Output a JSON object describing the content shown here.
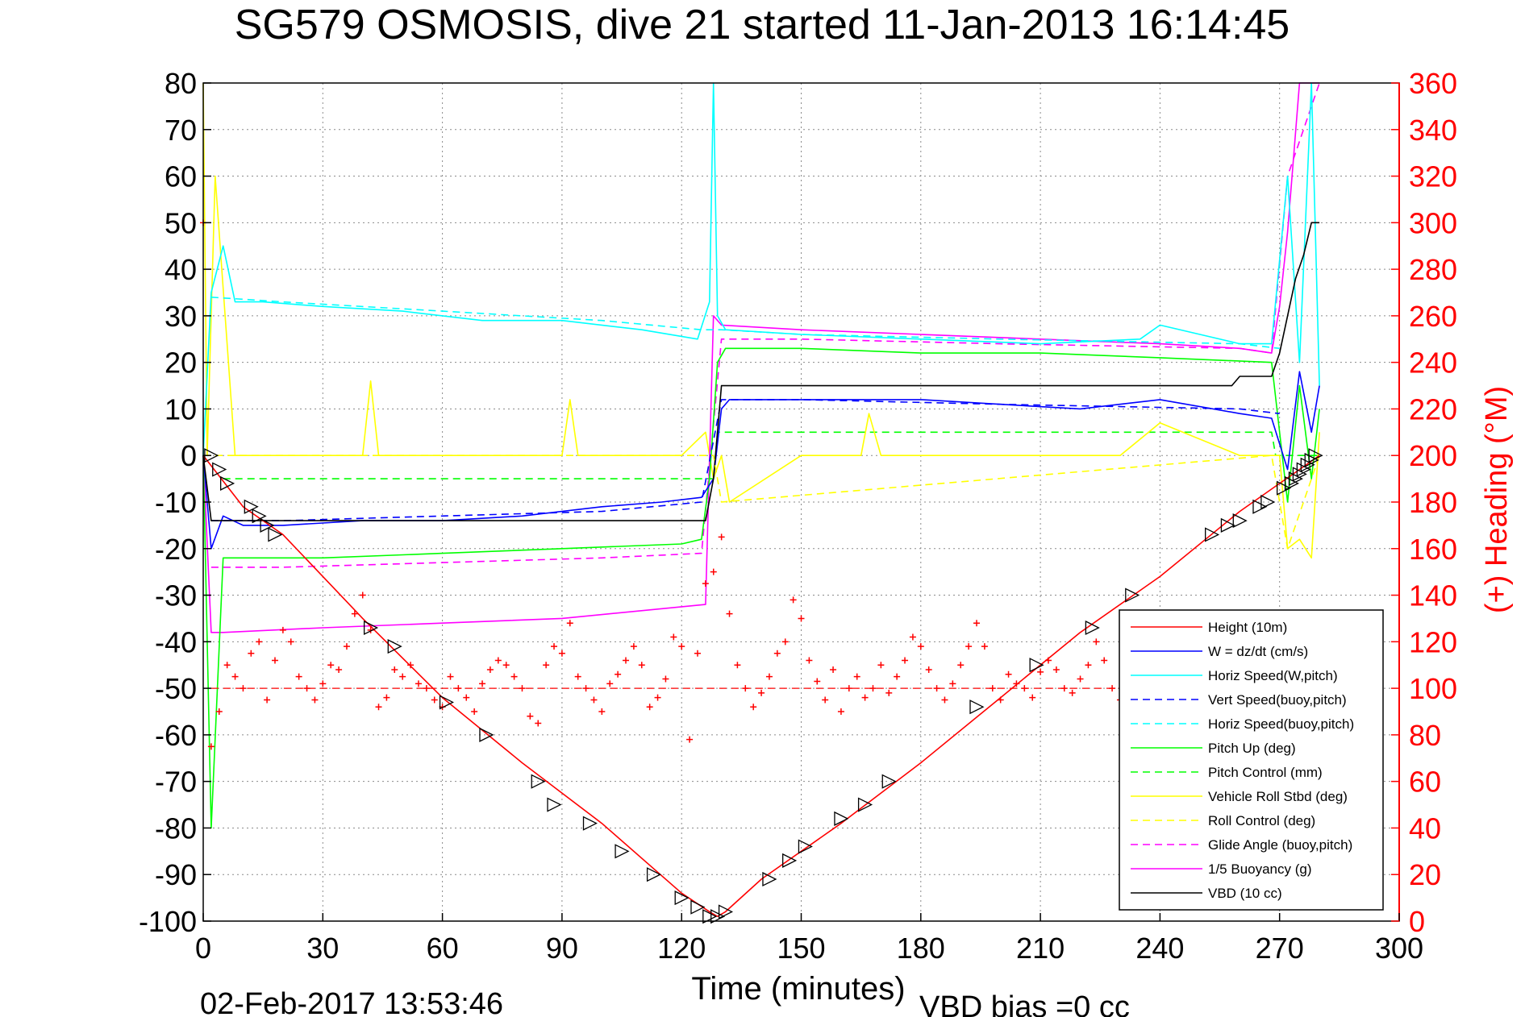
{
  "chart_data": {
    "type": "line",
    "title": "SG579 OSMOSIS, dive 21 started 11-Jan-2013 16:14:45",
    "xlabel": "Time (minutes)",
    "ylabel_right": "(+) Heading (°M)",
    "footer_timestamp": "02-Feb-2017 13:53:46",
    "footer_note": "VBD bias =0 cc",
    "xlim": [
      0,
      300
    ],
    "ylim": [
      -100,
      80
    ],
    "ylim_right": [
      0,
      360
    ],
    "x_ticks": [
      0,
      30,
      60,
      90,
      120,
      150,
      180,
      210,
      240,
      270,
      300
    ],
    "y_ticks": [
      -100,
      -90,
      -80,
      -70,
      -60,
      -50,
      -40,
      -30,
      -20,
      -10,
      0,
      10,
      20,
      30,
      40,
      50,
      60,
      70,
      80
    ],
    "y_ticks_right": [
      0,
      20,
      40,
      60,
      80,
      100,
      120,
      140,
      160,
      180,
      200,
      220,
      240,
      260,
      280,
      300,
      320,
      340,
      360
    ],
    "grid": true,
    "legend_position": "bottom-right",
    "colors": {
      "axis": "#000000",
      "right_axis": "#ff0000",
      "grid": "#8a8a8a",
      "background": "#ffffff"
    },
    "series": [
      {
        "name": "Height (10m)",
        "color": "#ff0000",
        "style": "solid",
        "x": [
          0,
          10,
          20,
          40,
          60,
          80,
          100,
          120,
          127,
          129,
          131,
          140,
          160,
          180,
          200,
          220,
          240,
          260,
          270,
          275,
          280
        ],
        "y": [
          0,
          -11,
          -17,
          -35,
          -52,
          -66,
          -79,
          -94,
          -98,
          -99,
          -98,
          -91,
          -79,
          -66,
          -52,
          -38,
          -26,
          -12,
          -6,
          -3,
          0
        ]
      },
      {
        "name": "W = dz/dt (cm/s)",
        "color": "#0000ff",
        "style": "solid",
        "x": [
          0,
          2,
          5,
          10,
          20,
          40,
          60,
          80,
          100,
          115,
          125,
          128,
          130,
          132,
          150,
          180,
          200,
          220,
          240,
          260,
          268,
          272,
          275,
          278,
          280
        ],
        "y": [
          0,
          -20,
          -13,
          -15,
          -15,
          -14,
          -14,
          -13,
          -11,
          -10,
          -9,
          -5,
          10,
          12,
          12,
          12,
          11,
          10,
          12,
          9,
          8,
          -3,
          18,
          5,
          15
        ]
      },
      {
        "name": "Horiz Speed(W,pitch)",
        "color": "#00ffff",
        "style": "solid",
        "x": [
          0,
          2,
          5,
          8,
          15,
          30,
          50,
          70,
          90,
          110,
          124,
          127,
          128,
          129,
          131,
          150,
          180,
          210,
          235,
          240,
          260,
          268,
          272,
          275,
          278,
          280
        ],
        "y": [
          0,
          35,
          45,
          33,
          33,
          32,
          31,
          29,
          29,
          27,
          25,
          33,
          80,
          30,
          27,
          26,
          25,
          24,
          25,
          28,
          24,
          24,
          60,
          20,
          80,
          15
        ]
      },
      {
        "name": "Vert Speed(buoy,pitch)",
        "color": "#0000ff",
        "style": "dashed",
        "x": [
          2,
          20,
          60,
          100,
          125,
          130,
          150,
          200,
          260,
          270
        ],
        "y": [
          -14,
          -14,
          -13,
          -12,
          -10,
          12,
          12,
          11,
          10,
          9
        ]
      },
      {
        "name": "Horiz Speed(buoy,pitch)",
        "color": "#00ffff",
        "style": "dashed",
        "x": [
          2,
          20,
          60,
          100,
          125,
          130,
          150,
          200,
          260,
          270
        ],
        "y": [
          34,
          33,
          31,
          29,
          27,
          27,
          26,
          25,
          24,
          23
        ]
      },
      {
        "name": "Pitch Up (deg)",
        "color": "#00ff00",
        "style": "solid",
        "x": [
          0,
          2,
          5,
          10,
          30,
          60,
          90,
          120,
          125,
          127,
          129,
          131,
          150,
          180,
          210,
          240,
          268,
          272,
          275,
          278,
          280
        ],
        "y": [
          0,
          -80,
          -22,
          -22,
          -22,
          -21,
          -20,
          -19,
          -18,
          -5,
          20,
          23,
          23,
          22,
          22,
          21,
          20,
          -10,
          15,
          -5,
          10
        ]
      },
      {
        "name": "Pitch Control (mm)",
        "color": "#00ff00",
        "style": "dashed",
        "x": [
          5,
          128,
          129,
          268,
          269,
          280
        ],
        "y": [
          -5,
          -5,
          5,
          5,
          0,
          0
        ]
      },
      {
        "name": "Vehicle Roll Stbd (deg)",
        "color": "#ffff00",
        "style": "solid",
        "x": [
          0,
          1,
          3,
          8,
          20,
          40,
          42,
          44,
          60,
          90,
          92,
          94,
          120,
          126,
          128,
          130,
          132,
          150,
          165,
          167,
          170,
          200,
          230,
          240,
          260,
          270,
          272,
          275,
          278,
          280
        ],
        "y": [
          80,
          0,
          60,
          0,
          0,
          0,
          16,
          0,
          0,
          0,
          12,
          0,
          0,
          5,
          -5,
          0,
          -10,
          0,
          0,
          9,
          0,
          0,
          0,
          7,
          0,
          0,
          -20,
          -18,
          -22,
          5
        ]
      },
      {
        "name": "Roll Control (deg)",
        "color": "#ffff00",
        "style": "dashed",
        "x": [
          0,
          5,
          128,
          130,
          268,
          272,
          280
        ],
        "y": [
          0,
          0,
          0,
          -10,
          0,
          -20,
          0
        ]
      },
      {
        "name": "Glide Angle (buoy,pitch)",
        "color": "#ff00ff",
        "style": "dashed",
        "x": [
          2,
          20,
          60,
          100,
          125,
          130,
          150,
          200,
          260,
          268,
          272,
          280
        ],
        "y": [
          -24,
          -24,
          -23,
          -22,
          -21,
          25,
          25,
          24,
          23,
          22,
          60,
          80
        ]
      },
      {
        "name": "1/5 Buoyancy (g)",
        "color": "#ff00ff",
        "style": "solid",
        "x": [
          0,
          2,
          5,
          30,
          60,
          90,
          126,
          128,
          130,
          150,
          180,
          210,
          240,
          260,
          268,
          270,
          272,
          275,
          278,
          280
        ],
        "y": [
          0,
          -38,
          -38,
          -37,
          -36,
          -35,
          -32,
          30,
          28,
          27,
          26,
          25,
          24,
          23,
          22,
          32,
          48,
          80,
          80,
          80
        ]
      },
      {
        "name": "VBD (10 cc)",
        "color": "#000000",
        "style": "solid",
        "x": [
          0,
          2,
          5,
          30,
          60,
          90,
          126,
          128,
          130,
          150,
          200,
          240,
          258,
          260,
          268,
          270,
          272,
          274,
          276,
          278,
          280
        ],
        "y": [
          0,
          -14,
          -14,
          -14,
          -14,
          -14,
          -14,
          -5,
          15,
          15,
          15,
          15,
          15,
          17,
          17,
          22,
          30,
          38,
          43,
          50,
          50
        ]
      }
    ],
    "heading": {
      "name": "(+) Heading (°M)",
      "color": "#ff0000",
      "marker": "+",
      "axis": "right",
      "x": [
        0,
        2,
        4,
        6,
        8,
        10,
        12,
        14,
        16,
        18,
        20,
        22,
        24,
        26,
        28,
        30,
        32,
        34,
        36,
        38,
        40,
        42,
        44,
        46,
        48,
        50,
        52,
        54,
        56,
        58,
        60,
        62,
        64,
        66,
        68,
        70,
        72,
        74,
        76,
        78,
        80,
        82,
        84,
        86,
        88,
        90,
        92,
        94,
        96,
        98,
        100,
        102,
        104,
        106,
        108,
        110,
        112,
        114,
        116,
        118,
        120,
        122,
        124,
        126,
        128,
        130,
        132,
        134,
        136,
        138,
        140,
        142,
        144,
        146,
        148,
        150,
        152,
        154,
        156,
        158,
        160,
        162,
        164,
        166,
        168,
        170,
        172,
        174,
        176,
        178,
        180,
        182,
        184,
        186,
        188,
        190,
        192,
        194,
        196,
        198,
        200,
        202,
        204,
        206,
        208,
        210,
        212,
        214,
        216,
        218,
        220,
        222,
        224,
        226,
        228,
        230,
        232
      ],
      "y": [
        300,
        75,
        90,
        110,
        105,
        100,
        115,
        120,
        95,
        112,
        125,
        120,
        105,
        100,
        95,
        102,
        110,
        108,
        118,
        132,
        140,
        125,
        92,
        96,
        108,
        105,
        110,
        102,
        100,
        95,
        92,
        105,
        100,
        96,
        90,
        102,
        108,
        112,
        110,
        105,
        100,
        88,
        85,
        110,
        118,
        115,
        128,
        105,
        100,
        95,
        90,
        102,
        106,
        112,
        118,
        110,
        92,
        96,
        104,
        122,
        118,
        78,
        115,
        145,
        150,
        165,
        132,
        110,
        100,
        92,
        98,
        105,
        115,
        120,
        138,
        130,
        112,
        103,
        95,
        108,
        90,
        100,
        105,
        96,
        100,
        110,
        98,
        105,
        112,
        122,
        118,
        108,
        100,
        95,
        102,
        110,
        118,
        128,
        118,
        100,
        95,
        106,
        102,
        100,
        96,
        107,
        112,
        108,
        100,
        98,
        104,
        110,
        120,
        112,
        100,
        95,
        100
      ],
      "mean": 100
    },
    "markers": {
      "name": "Height (10m)",
      "symbol": "triangle",
      "color": "#000000",
      "points": [
        [
          2,
          0
        ],
        [
          4,
          -3
        ],
        [
          6,
          -6
        ],
        [
          12,
          -11
        ],
        [
          14,
          -13
        ],
        [
          16,
          -15
        ],
        [
          18,
          -17
        ],
        [
          42,
          -37
        ],
        [
          48,
          -41
        ],
        [
          61,
          -53
        ],
        [
          71,
          -60
        ],
        [
          84,
          -70
        ],
        [
          88,
          -75
        ],
        [
          97,
          -79
        ],
        [
          105,
          -85
        ],
        [
          113,
          -90
        ],
        [
          120,
          -95
        ],
        [
          124,
          -97
        ],
        [
          127,
          -99
        ],
        [
          129,
          -99
        ],
        [
          131,
          -98
        ],
        [
          142,
          -91
        ],
        [
          147,
          -87
        ],
        [
          151,
          -84
        ],
        [
          160,
          -78
        ],
        [
          166,
          -75
        ],
        [
          172,
          -70
        ],
        [
          194,
          -54
        ],
        [
          209,
          -45
        ],
        [
          223,
          -37
        ],
        [
          233,
          -30
        ],
        [
          253,
          -17
        ],
        [
          257,
          -15
        ],
        [
          260,
          -14
        ],
        [
          265,
          -11
        ],
        [
          267,
          -10
        ],
        [
          271,
          -7
        ],
        [
          273,
          -6
        ],
        [
          274,
          -5
        ],
        [
          275,
          -4
        ],
        [
          276,
          -3
        ],
        [
          277,
          -2
        ],
        [
          278,
          -1
        ],
        [
          279,
          0
        ]
      ]
    }
  }
}
